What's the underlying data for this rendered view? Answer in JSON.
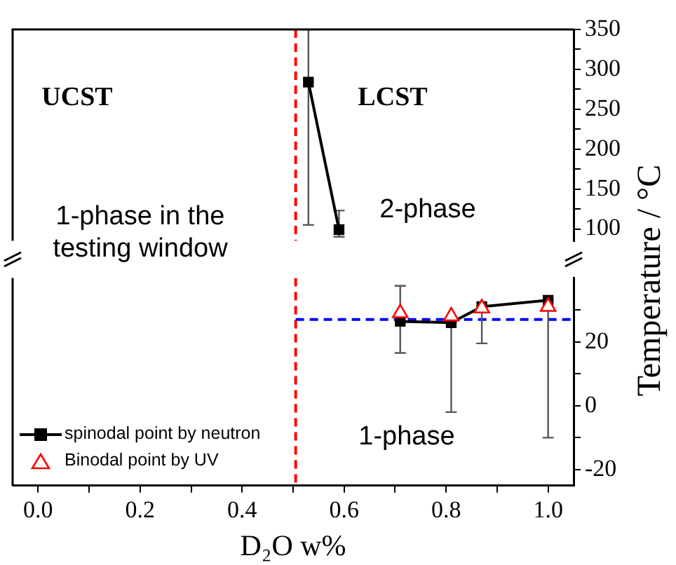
{
  "chart_data": [
    {
      "type": "line",
      "ylabel": "Temperature / °C",
      "annotations": [
        "UCST",
        "LCST",
        "2-phase",
        "1-phase in the testing window"
      ],
      "xlim": [
        -0.05,
        1.05
      ],
      "ylim": [
        85,
        350
      ],
      "yticks": [
        100,
        {
          "value": 125,
          "label": null
        },
        150,
        {
          "value": 175,
          "label": null
        },
        200,
        {
          "value": 225,
          "label": null
        },
        250,
        {
          "value": 275,
          "label": null
        },
        300,
        {
          "value": 325,
          "label": null
        },
        350
      ],
      "tick_labels": "y",
      "series": [
        {
          "marker": "square",
          "color": "#000000",
          "x": [
            0.53,
            0.59
          ],
          "values": [
            284,
            99
          ],
          "errors": [
            [
              105,
              350
            ],
            [
              90,
              123
            ]
          ]
        }
      ],
      "ref_lines": [
        {
          "axis": "x",
          "value": 0.505,
          "color": "#ff0000",
          "line_style": "dashed"
        }
      ]
    },
    {
      "type": "line",
      "xlabel": "D₂O w%",
      "annotations": [
        "1-phase"
      ],
      "xlim": [
        -0.05,
        1.05
      ],
      "xticks": [
        {
          "value": 0,
          "label": "0.0"
        },
        {
          "value": 0.1,
          "label": null
        },
        {
          "value": 0.2,
          "label": "0.2"
        },
        {
          "value": 0.3,
          "label": null
        },
        {
          "value": 0.4,
          "label": "0.4"
        },
        {
          "value": 0.5,
          "label": null
        },
        {
          "value": 0.6,
          "label": "0.6"
        },
        {
          "value": 0.7,
          "label": null
        },
        {
          "value": 0.8,
          "label": "0.8"
        },
        {
          "value": 0.9,
          "label": null
        },
        {
          "value": 1,
          "label": "1.0"
        }
      ],
      "ylim": [
        -25,
        40
      ],
      "yticks": [
        -20,
        {
          "value": -10,
          "label": null
        },
        0,
        {
          "value": 10,
          "label": null
        },
        20,
        {
          "value": 30,
          "label": null
        }
      ],
      "legend": "bottom left",
      "series": [
        {
          "name": "spinodal point by neutron",
          "marker": "square",
          "color": "#000000",
          "x": [
            0.71,
            0.81,
            0.87,
            1.0
          ],
          "values": [
            26.4,
            26,
            31,
            33
          ],
          "errors": [
            [
              16.5,
              37.5
            ],
            [
              -2,
              26
            ],
            [
              19.5,
              31
            ],
            [
              -10,
              33
            ]
          ]
        },
        {
          "name": "Binodal point by UV",
          "type": "scatter",
          "marker": "triangle",
          "color": "#ff0000",
          "x": [
            0.71,
            0.81,
            0.87,
            1.0
          ],
          "values": [
            29,
            28,
            30.5,
            31
          ]
        }
      ],
      "ref_lines": [
        {
          "axis": "x",
          "value": 0.505,
          "color": "#ff0000",
          "line_style": "dashed"
        },
        {
          "axis": "y",
          "value": 27,
          "color": "#0000ff",
          "line_style": "dashed"
        }
      ]
    }
  ]
}
